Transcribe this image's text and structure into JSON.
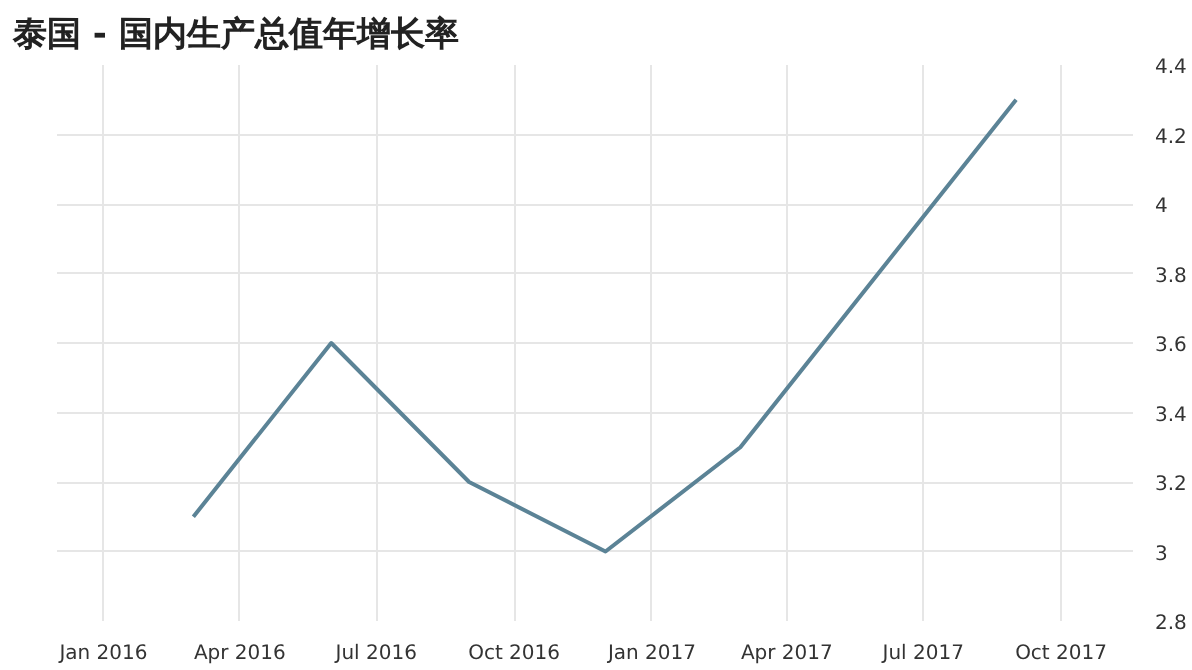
{
  "chart_data": {
    "type": "line",
    "title": "泰国 - 国内生产总值年增长率",
    "x": [
      "2016-03",
      "2016-06",
      "2016-09",
      "2016-12",
      "2017-03",
      "2017-06",
      "2017-09"
    ],
    "series": [
      {
        "color": "#5b8396",
        "values": [
          3.1,
          3.6,
          3.2,
          3.0,
          3.3,
          3.8,
          4.3
        ]
      }
    ],
    "xlim": [
      "2015-12",
      "2017-11-18"
    ],
    "xticks": [
      {
        "value": "2016-01",
        "label": "Jan 2016"
      },
      {
        "value": "2016-04",
        "label": "Apr 2016"
      },
      {
        "value": "2016-07",
        "label": "Jul 2016"
      },
      {
        "value": "2016-10",
        "label": "Oct 2016"
      },
      {
        "value": "2017-01",
        "label": "Jan 2017"
      },
      {
        "value": "2017-04",
        "label": "Apr 2017"
      },
      {
        "value": "2017-07",
        "label": "Jul 2017"
      },
      {
        "value": "2017-10",
        "label": "Oct 2017"
      }
    ],
    "ylim": [
      2.8,
      4.4
    ],
    "yticks": [
      {
        "value": 2.8,
        "label": "2.8"
      },
      3,
      {
        "value": 3.2,
        "label": "3.2"
      },
      {
        "value": 3.4,
        "label": "3.4"
      },
      {
        "value": 3.6,
        "label": "3.6"
      },
      {
        "value": 3.8,
        "label": "3.8"
      },
      4,
      {
        "value": 4.2,
        "label": "4.2"
      },
      {
        "value": 4.4,
        "label": "4.4"
      }
    ],
    "grid": true,
    "marker": "none",
    "line_style": "solid"
  }
}
